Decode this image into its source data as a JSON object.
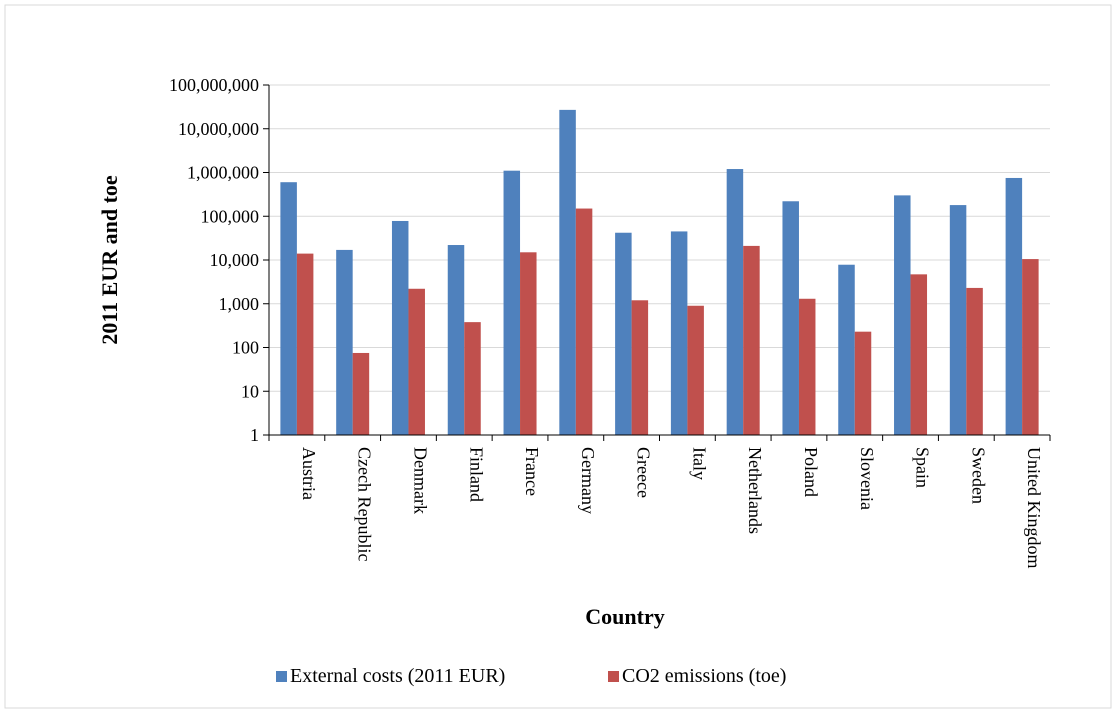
{
  "chart_data": {
    "type": "bar",
    "title": "",
    "xlabel": "Country",
    "ylabel": "2011 EUR and toe",
    "yscale": "log",
    "ylim": [
      1,
      100000000
    ],
    "y_ticks": [
      "1",
      "10",
      "100",
      "1,000",
      "10,000",
      "100,000",
      "1,000,000",
      "10,000,000",
      "100,000,000"
    ],
    "grid": true,
    "legend_position": "bottom",
    "categories": [
      "Austria",
      "Czech Republic",
      "Denmark",
      "Finland",
      "France",
      "Germany",
      "Greece",
      "Italy",
      "Netherlands",
      "Poland",
      "Slovenia",
      "Spain",
      "Sweden",
      "United Kingdom"
    ],
    "series": [
      {
        "name": "External costs (2011 EUR)",
        "color": "#4f81bd",
        "values": [
          600000,
          17000,
          78000,
          22000,
          1100000,
          27000000,
          42000,
          45000,
          1200000,
          220000,
          7800,
          300000,
          180000,
          750000
        ]
      },
      {
        "name": "CO2 emissions (toe)",
        "color": "#c0504d",
        "values": [
          14000,
          75,
          2200,
          380,
          15000,
          150000,
          1200,
          900,
          21000,
          1300,
          230,
          4700,
          2300,
          10500
        ]
      }
    ]
  }
}
